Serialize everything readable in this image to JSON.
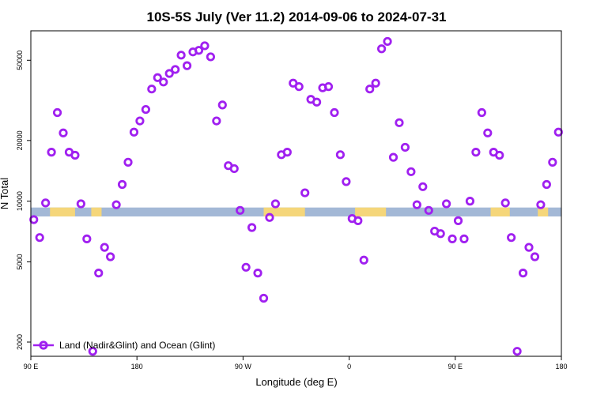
{
  "chart_data": {
    "type": "scatter",
    "title": "10S-5S July (Ver 11.2)   2014-09-06 to 2024-07-31",
    "xlabel": "Longitude (deg E)",
    "ylabel": "N Total",
    "xlim": [
      90,
      450
    ],
    "ylim": [
      1700,
      70000
    ],
    "y_scale": "log",
    "x_ticks": [
      {
        "value": 90,
        "label": "90 E"
      },
      {
        "value": 162,
        "label": "180"
      },
      {
        "value": 234,
        "label": "90 W"
      },
      {
        "value": 306,
        "label": "0"
      },
      {
        "value": 378,
        "label": "90 E"
      },
      {
        "value": 450,
        "label": "180"
      }
    ],
    "y_ticks": [
      {
        "value": 2000,
        "label": "2000"
      },
      {
        "value": 5000,
        "label": "5000"
      },
      {
        "value": 10000,
        "label": "10000"
      },
      {
        "value": 20000,
        "label": "20000"
      },
      {
        "value": 50000,
        "label": "50000"
      }
    ],
    "band": {
      "ymin": 8400,
      "ymax": 9300,
      "ocean_color": "#a3b8d6",
      "land_color": "#f5d67a"
    },
    "series": [
      {
        "name": "Land (Nadir&Glint) and Ocean (Glint)",
        "color": "#a020f0",
        "marker": "open-circle",
        "x": [
          92,
          96,
          100,
          104,
          108,
          112,
          116,
          120,
          124,
          128,
          132,
          136,
          140,
          144,
          148,
          152,
          156,
          160,
          164,
          168,
          172,
          176,
          180,
          184,
          188,
          192,
          196,
          200,
          204,
          208,
          212,
          216,
          220,
          224,
          228,
          232,
          236,
          240,
          244,
          248,
          252,
          256,
          260,
          264,
          268,
          272,
          276,
          280,
          284,
          288,
          292,
          296,
          300,
          304,
          308,
          312,
          316,
          320,
          324,
          328,
          332,
          336,
          340,
          344,
          348,
          352,
          356,
          360,
          364,
          368,
          372,
          376,
          380,
          384,
          388,
          392,
          396,
          400,
          404,
          408,
          412,
          416,
          420,
          424,
          428,
          432,
          436,
          440,
          444,
          448
        ],
        "y": [
          8100,
          6600,
          9800,
          17500,
          27500,
          21800,
          17500,
          16900,
          9700,
          6500,
          1800,
          4400,
          5900,
          5300,
          9600,
          12100,
          15600,
          22000,
          25000,
          28500,
          36000,
          41000,
          39000,
          43000,
          45000,
          53000,
          47000,
          55000,
          56000,
          59000,
          52000,
          25000,
          30000,
          15000,
          14500,
          9000,
          4700,
          7400,
          4400,
          3300,
          8300,
          9700,
          17000,
          17500,
          38500,
          37000,
          11000,
          32000,
          31000,
          36500,
          37000,
          27500,
          17000,
          12500,
          8200,
          8000,
          5100,
          36000,
          38500,
          57000,
          62000,
          16500,
          24500,
          18500,
          14000,
          9600,
          11800,
          9000,
          7100,
          6900,
          9700,
          6500,
          8000,
          6500,
          10000,
          17500,
          27500,
          21800,
          17500,
          16900,
          9800,
          6600,
          1800,
          4400,
          5900,
          5300,
          9600,
          12100,
          15600,
          22000
        ]
      }
    ],
    "legend": {
      "position": "bottom-left",
      "label": "Land (Nadir&Glint) and Ocean (Glint)"
    }
  }
}
